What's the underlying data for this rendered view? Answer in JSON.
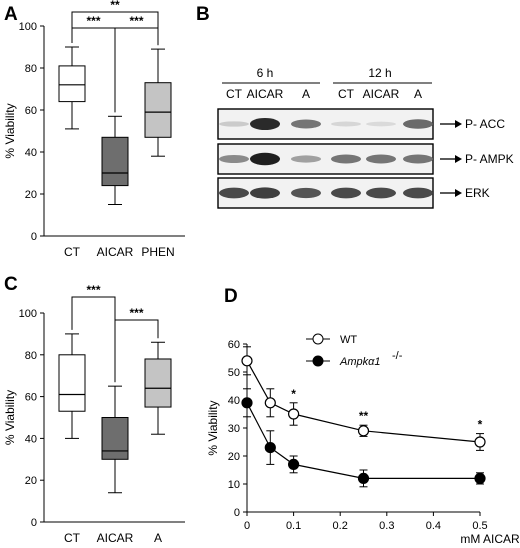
{
  "panels": {
    "A": {
      "letter": "A",
      "chart_data": {
        "type": "box",
        "ylabel": "% Viability",
        "ylim": [
          0,
          100
        ],
        "yticks": [
          0,
          20,
          40,
          60,
          80,
          100
        ],
        "categories": [
          "CT",
          "AICAR",
          "PHEN"
        ],
        "boxes": [
          {
            "min": 51,
            "q1": 64,
            "median": 72,
            "q3": 81,
            "max": 90,
            "fill": "#ffffff"
          },
          {
            "min": 15,
            "q1": 24,
            "median": 30,
            "q3": 47,
            "max": 57,
            "fill": "#6e6e6e"
          },
          {
            "min": 38,
            "q1": 47,
            "median": 59,
            "q3": 73,
            "max": 89,
            "fill": "#c4c4c4"
          }
        ],
        "significance": [
          {
            "from": 0,
            "to": 2,
            "label": "**",
            "level": "top"
          },
          {
            "from": 0,
            "to": 1,
            "label": "***",
            "level": "low"
          },
          {
            "from": 1,
            "to": 2,
            "label": "***",
            "level": "low"
          }
        ]
      }
    },
    "B": {
      "letter": "B",
      "time_groups": [
        "6 h",
        "12 h"
      ],
      "lanes": [
        "CT",
        "AICAR",
        "A",
        "CT",
        "AICAR",
        "A"
      ],
      "blots": [
        {
          "label": "P- ACC",
          "intensities": [
            0.15,
            0.9,
            0.55,
            0.1,
            0.08,
            0.6
          ]
        },
        {
          "label": "P- AMPK",
          "intensities": [
            0.45,
            0.95,
            0.35,
            0.55,
            0.55,
            0.55
          ]
        },
        {
          "label": "ERK",
          "intensities": [
            0.75,
            0.8,
            0.7,
            0.75,
            0.75,
            0.75
          ]
        }
      ]
    },
    "C": {
      "letter": "C",
      "chart_data": {
        "type": "box",
        "ylabel": "% Viability",
        "ylim": [
          0,
          100
        ],
        "yticks": [
          0,
          20,
          40,
          60,
          80,
          100
        ],
        "categories": [
          "CT",
          "AICAR",
          "A"
        ],
        "boxes": [
          {
            "min": 40,
            "q1": 53,
            "median": 61,
            "q3": 80,
            "max": 90,
            "fill": "#ffffff"
          },
          {
            "min": 14,
            "q1": 30,
            "median": 34,
            "q3": 50,
            "max": 65,
            "fill": "#6e6e6e"
          },
          {
            "min": 42,
            "q1": 55,
            "median": 64,
            "q3": 78,
            "max": 86,
            "fill": "#c4c4c4"
          }
        ],
        "significance": [
          {
            "from": 0,
            "to": 1,
            "label": "***",
            "level": "top"
          },
          {
            "from": 1,
            "to": 2,
            "label": "***",
            "level": "low"
          }
        ]
      }
    },
    "D": {
      "letter": "D",
      "chart_data": {
        "type": "line",
        "ylabel": "% Viability",
        "xlabel": "mM AICAR",
        "ylim": [
          0,
          60
        ],
        "yticks": [
          0,
          10,
          20,
          30,
          40,
          50,
          60
        ],
        "xlim": [
          0,
          0.5
        ],
        "xticks": [
          0,
          0.1,
          0.2,
          0.3,
          0.4,
          0.5
        ],
        "series": [
          {
            "name": "WT",
            "marker": "open",
            "x": [
              0,
              0.05,
              0.1,
              0.25,
              0.5
            ],
            "y": [
              54,
              39,
              35,
              29,
              25
            ],
            "err": [
              5,
              5,
              4,
              2,
              3
            ]
          },
          {
            "name": "Ampkα1",
            "name_sup": "-/-",
            "marker": "filled",
            "x": [
              0,
              0.05,
              0.1,
              0.25,
              0.5
            ],
            "y": [
              39,
              23,
              17,
              12,
              12
            ],
            "err": [
              5,
              6,
              3,
              3,
              2
            ]
          }
        ],
        "annotations": [
          {
            "x": 0.1,
            "label": "*"
          },
          {
            "x": 0.25,
            "label": "**"
          },
          {
            "x": 0.5,
            "label": "*"
          }
        ]
      }
    }
  }
}
